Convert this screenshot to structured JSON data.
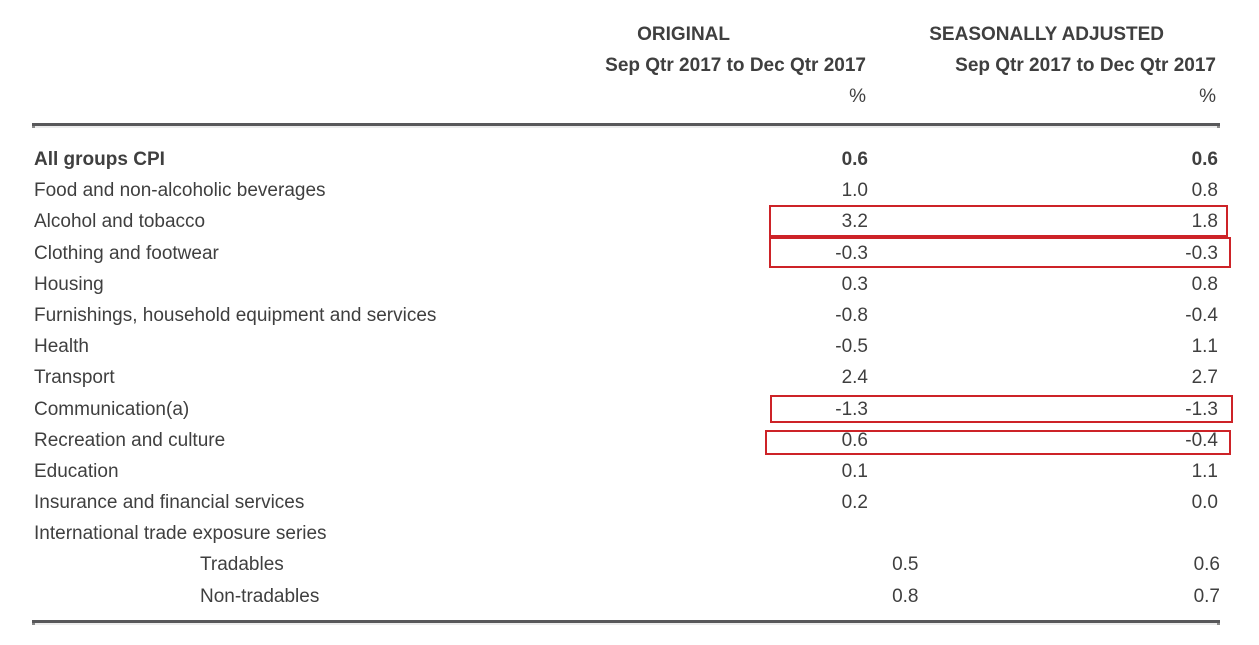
{
  "table": {
    "columns": [
      {
        "group": "ORIGINAL",
        "period": "Sep Qtr 2017 to Dec Qtr 2017",
        "unit": "%"
      },
      {
        "group": "SEASONALLY ADJUSTED",
        "period": "Sep Qtr 2017 to Dec Qtr 2017",
        "unit": "%"
      }
    ],
    "rows": [
      {
        "label": "All groups CPI",
        "original": "0.6",
        "seasonally_adjusted": "0.6"
      },
      {
        "label": "Food and non-alcoholic beverages",
        "original": "1.0",
        "seasonally_adjusted": "0.8"
      },
      {
        "label": "Alcohol and tobacco",
        "original": "3.2",
        "seasonally_adjusted": "1.8"
      },
      {
        "label": "Clothing and footwear",
        "original": "-0.3",
        "seasonally_adjusted": "-0.3"
      },
      {
        "label": "Housing",
        "original": "0.3",
        "seasonally_adjusted": "0.8"
      },
      {
        "label": "Furnishings, household equipment and services",
        "original": "-0.8",
        "seasonally_adjusted": "-0.4"
      },
      {
        "label": "Health",
        "original": "-0.5",
        "seasonally_adjusted": "1.1"
      },
      {
        "label": "Transport",
        "original": "2.4",
        "seasonally_adjusted": "2.7"
      },
      {
        "label": "Communication(a)",
        "original": "-1.3",
        "seasonally_adjusted": "-1.3"
      },
      {
        "label": "Recreation and culture",
        "original": "0.6",
        "seasonally_adjusted": "-0.4"
      },
      {
        "label": "Education",
        "original": "0.1",
        "seasonally_adjusted": "1.1"
      },
      {
        "label": "Insurance and financial services",
        "original": "0.2",
        "seasonally_adjusted": "0.0"
      },
      {
        "label": "International trade exposure series",
        "original": "",
        "seasonally_adjusted": ""
      },
      {
        "label": "Tradables",
        "original": "0.5",
        "seasonally_adjusted": "0.6"
      },
      {
        "label": "Non-tradables",
        "original": "0.8",
        "seasonally_adjusted": "0.7"
      }
    ],
    "highlighted_rows": [
      "Alcohol and tobacco",
      "Clothing and footwear",
      "Communication(a)",
      "Recreation and culture"
    ]
  },
  "colors": {
    "text": "#3f3f3f",
    "annotation_red": "#cd2328",
    "rule_dark": "#58585a",
    "rule_light": "#ececec"
  }
}
